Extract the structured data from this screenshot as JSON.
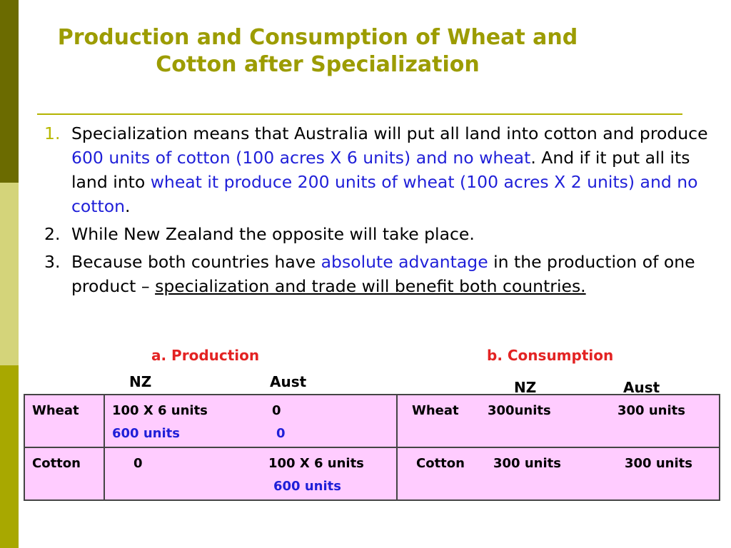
{
  "title": "Production and Consumption of Wheat and Cotton after Specialization",
  "points": [
    {
      "num": "1.",
      "a": "Specialization means that Australia will put all land into cotton and produce ",
      "b": "600 units of cotton (100 acres X 6 units) and no wheat",
      "c": ". And if it put all its land into ",
      "d": "wheat it produce 200 units of wheat (100 acres X 2 units) and no cotton",
      "e": "."
    },
    {
      "num": "2.",
      "text": "While New Zealand the opposite will take place."
    },
    {
      "num": "3.",
      "a": "Because both countries have ",
      "b": "absolute advantage",
      "c": " in the production of one product – ",
      "d": "specialization and trade will benefit both countries."
    }
  ],
  "labels": {
    "production": "a. Production",
    "consumption": "b. Consumption",
    "prod_nz": "NZ",
    "prod_aust": "Aust",
    "cons_nz": "NZ",
    "cons_aust": "Aust"
  },
  "table": {
    "row1": {
      "label": "Wheat",
      "nz_line1": "100 X 6 units",
      "nz_line2": "600 units",
      "aust_line1": "0",
      "aust_line2": "0",
      "cons_label": "Wheat",
      "cons_nz": "300units",
      "cons_aust": "300 units"
    },
    "row2": {
      "label": "Cotton",
      "nz_line1": "0",
      "aust_line1": "100 X 6 units",
      "aust_line2": "600 units",
      "cons_label": "Cotton",
      "cons_nz": "300 units",
      "cons_aust": "300 units"
    }
  },
  "colors": {
    "title": "#9c9c00",
    "highlight_blue": "#1f1fd8",
    "heading_red": "#e32323",
    "table_bg": "#ffccff"
  }
}
